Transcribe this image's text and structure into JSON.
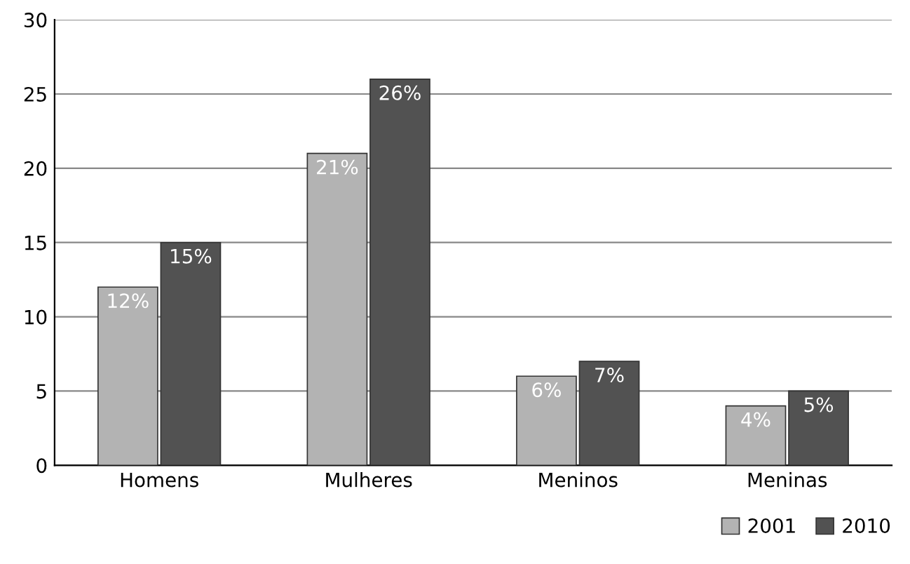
{
  "chart_data": {
    "type": "bar",
    "categories": [
      "Homens",
      "Mulheres",
      "Meninos",
      "Meninas"
    ],
    "series": [
      {
        "name": "2001",
        "color": "#b3b3b3",
        "values": [
          12,
          21,
          6,
          4
        ],
        "value_labels": [
          "12%",
          "21%",
          "6%",
          "4%"
        ]
      },
      {
        "name": "2010",
        "color": "#525252",
        "values": [
          15,
          26,
          7,
          5
        ],
        "value_labels": [
          "15%",
          "26%",
          "7%",
          "5%"
        ]
      }
    ],
    "ylim": [
      0,
      30
    ],
    "yticks": [
      0,
      5,
      10,
      15,
      20,
      25,
      30
    ],
    "grid": "y",
    "legend": "bottom right"
  }
}
